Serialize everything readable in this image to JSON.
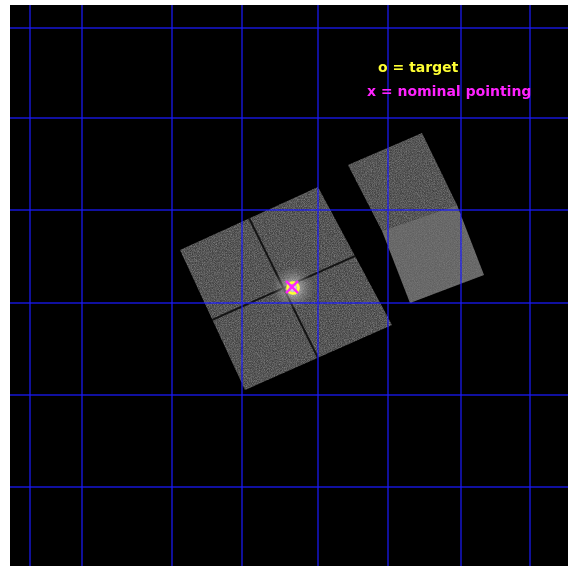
{
  "legend": {
    "target_label": "o = target",
    "pointing_label": "x = nominal pointing"
  },
  "colors": {
    "background": "#000000",
    "grid": "#1a1aff",
    "target": "#ffff33",
    "pointing": "#ff22ff",
    "chip": "#3a3a3a",
    "chip_light": "#5a5a5a"
  },
  "markers": {
    "target_icon": "circle-marker",
    "pointing_icon": "x-marker"
  }
}
